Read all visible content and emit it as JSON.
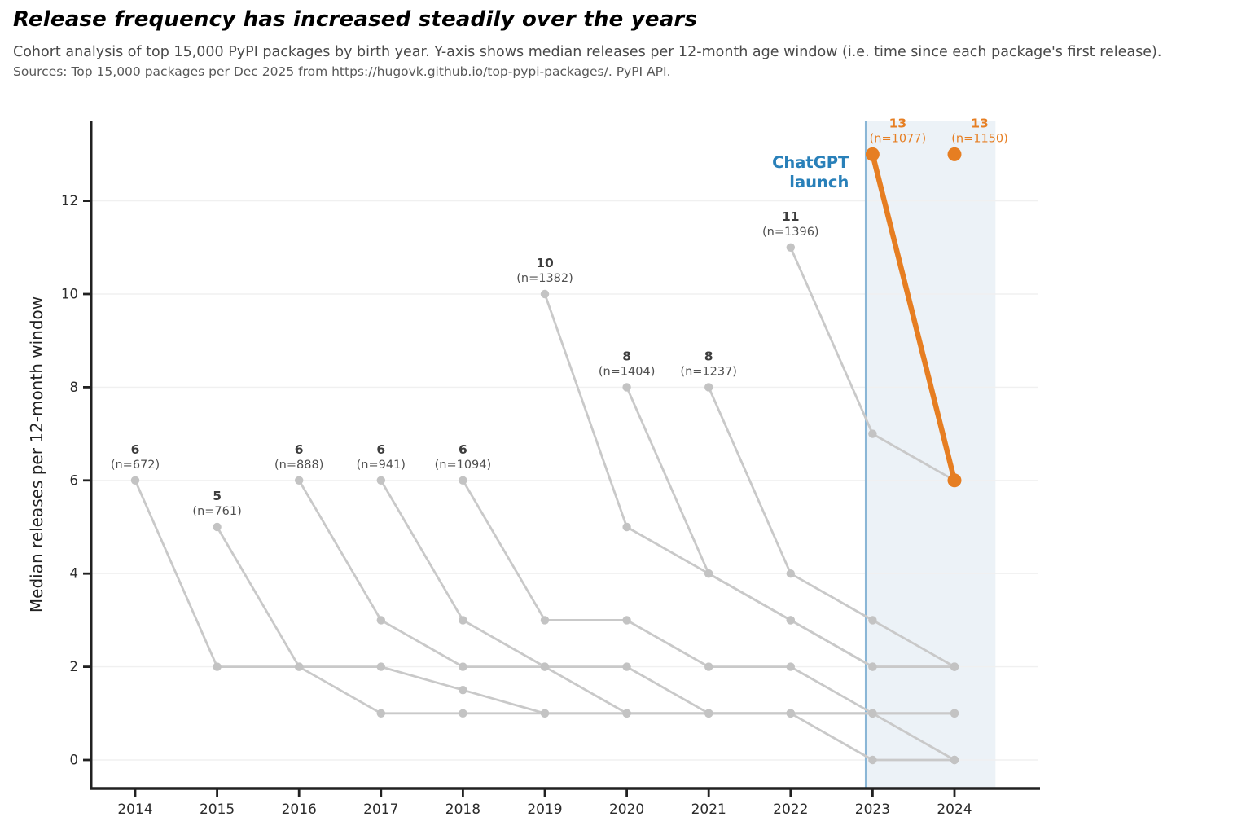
{
  "header": {
    "title": "Release frequency has increased steadily over the years",
    "subtitle": "Cohort analysis of top 15,000 PyPI packages by birth year. Y-axis shows median releases per 12-month age window (i.e. time since each package's first release).",
    "sources": "Sources: Top 15,000 packages per Dec 2025 from https://hugovk.github.io/top-pypi-packages/. PyPI API."
  },
  "chart_data": {
    "type": "line",
    "ylabel": "Median releases per 12-month window",
    "xlabel": "",
    "x_tick_labels": [
      "2014",
      "2015",
      "2016",
      "2017",
      "2018",
      "2019",
      "2020",
      "2021",
      "2022",
      "2023",
      "2024"
    ],
    "x_tick_years": [
      2014,
      2015,
      2016,
      2017,
      2018,
      2019,
      2020,
      2021,
      2022,
      2023,
      2024
    ],
    "y_ticks": [
      0,
      2,
      4,
      6,
      8,
      10,
      12
    ],
    "xlim": [
      2013.46,
      2025.05
    ],
    "ylim": [
      -0.61,
      13.72
    ],
    "grid": "horizontal",
    "shaded_region": {
      "from": 2022.92,
      "to": 2024.5
    },
    "annotation": {
      "lines": [
        "ChatGPT",
        "launch"
      ],
      "x_year": 2022.92
    },
    "series": [
      {
        "cohort": "2014",
        "n": 672,
        "peak": 6,
        "label": "6",
        "n_label": "(n=672)",
        "start": 2014,
        "values": [
          6,
          2,
          2,
          2,
          1.5,
          1,
          1,
          1,
          1,
          0,
          0
        ],
        "highlight": false,
        "label_dx": 0
      },
      {
        "cohort": "2015",
        "n": 761,
        "peak": 5,
        "label": "5",
        "n_label": "(n=761)",
        "start": 2015,
        "values": [
          5,
          2,
          1,
          1,
          1,
          1,
          1,
          1,
          1,
          0
        ],
        "highlight": false,
        "label_dx": 0
      },
      {
        "cohort": "2016",
        "n": 888,
        "peak": 6,
        "label": "6",
        "n_label": "(n=888)",
        "start": 2016,
        "values": [
          6,
          3,
          2,
          2,
          2,
          1,
          1,
          1,
          1
        ],
        "highlight": false,
        "label_dx": 0
      },
      {
        "cohort": "2017",
        "n": 941,
        "peak": 6,
        "label": "6",
        "n_label": "(n=941)",
        "start": 2017,
        "values": [
          6,
          3,
          2,
          1,
          1,
          1,
          1,
          1
        ],
        "highlight": false,
        "label_dx": 0
      },
      {
        "cohort": "2018",
        "n": 1094,
        "peak": 6,
        "label": "6",
        "n_label": "(n=1094)",
        "start": 2018,
        "values": [
          6,
          3,
          3,
          2,
          2,
          1,
          1
        ],
        "highlight": false,
        "label_dx": 0
      },
      {
        "cohort": "2019",
        "n": 1382,
        "peak": 10,
        "label": "10",
        "n_label": "(n=1382)",
        "start": 2019,
        "values": [
          10,
          5,
          4,
          3,
          2,
          2
        ],
        "highlight": false,
        "label_dx": 0
      },
      {
        "cohort": "2020",
        "n": 1404,
        "peak": 8,
        "label": "8",
        "n_label": "(n=1404)",
        "start": 2020,
        "values": [
          8,
          4,
          3,
          2,
          2
        ],
        "highlight": false,
        "label_dx": 0
      },
      {
        "cohort": "2021",
        "n": 1237,
        "peak": 8,
        "label": "8",
        "n_label": "(n=1237)",
        "start": 2021,
        "values": [
          8,
          4,
          3,
          2
        ],
        "highlight": false,
        "label_dx": 0
      },
      {
        "cohort": "2022",
        "n": 1396,
        "peak": 11,
        "label": "11",
        "n_label": "(n=1396)",
        "start": 2022,
        "values": [
          11,
          7,
          6
        ],
        "highlight": false,
        "label_dx": 0
      },
      {
        "cohort": "2023",
        "n": 1077,
        "peak": 13,
        "label": "13",
        "n_label": "(n=1077)",
        "start": 2023,
        "values": [
          13,
          6
        ],
        "highlight": true,
        "label_dx": 31
      },
      {
        "cohort": "2024",
        "n": 1150,
        "peak": 13,
        "label": "13",
        "n_label": "(n=1150)",
        "start": 2024,
        "values": [
          13
        ],
        "highlight": true,
        "label_dx": 31
      }
    ]
  },
  "colors": {
    "gray_line": "#c9c9c9",
    "gray_marker": "#c3c3c3",
    "highlight": "#e67e22",
    "annotation_blue": "#2980b9",
    "vline": "#8ab6d6",
    "region_fill": "#ecf2f7",
    "grid": "#f0f0f0",
    "spine": "#212121",
    "tick_label": "#2b2b2b",
    "peak_value_label": "#3d3d3d",
    "peak_n_label": "#4f4f4f",
    "axis_title": "#222222"
  }
}
